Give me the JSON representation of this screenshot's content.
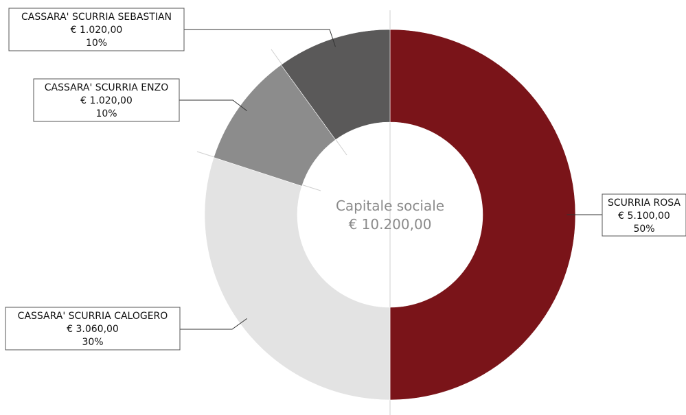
{
  "chart_data": {
    "type": "pie",
    "variant": "donut",
    "center": {
      "title": "Capitale sociale",
      "total": "€ 10.200,00"
    },
    "categories": [
      "SCURRIA ROSA",
      "CASSARA' SCURRIA CALOGERO",
      "CASSARA' SCURRIA ENZO",
      "CASSARA' SCURRIA SEBASTIAN"
    ],
    "values": [
      5100,
      3060,
      1020,
      1020
    ],
    "value_labels": [
      "€ 5.100,00",
      "€ 3.060,00",
      "€ 1.020,00",
      "€ 1.020,00"
    ],
    "percent_labels": [
      "50%",
      "30%",
      "10%",
      "10%"
    ],
    "colors": [
      "#7a1419",
      "#e3e3e3",
      "#8c8c8c",
      "#5a5959"
    ],
    "start": "12 o'clock",
    "direction": "clockwise",
    "legend": "none (callout labels)"
  }
}
